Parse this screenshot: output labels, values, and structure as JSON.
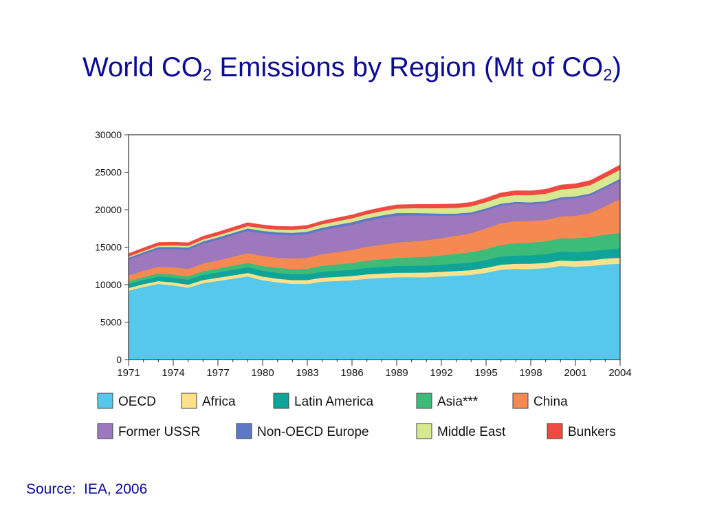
{
  "title": {
    "prefix": "World CO",
    "sub1": "2",
    "middle": " Emissions by Region (Mt of CO",
    "sub2": "2",
    "suffix": ")"
  },
  "source": "Source:  IEA, 2006",
  "chart_data": {
    "type": "area",
    "stacked": true,
    "x": [
      1971,
      1972,
      1973,
      1974,
      1975,
      1976,
      1977,
      1978,
      1979,
      1980,
      1981,
      1982,
      1983,
      1984,
      1985,
      1986,
      1987,
      1988,
      1989,
      1990,
      1991,
      1992,
      1993,
      1994,
      1995,
      1996,
      1997,
      1998,
      1999,
      2000,
      2001,
      2002,
      2003,
      2004
    ],
    "x_tick_labels": [
      "1971",
      "1974",
      "1977",
      "1980",
      "1983",
      "1986",
      "1989",
      "1992",
      "1995",
      "1998",
      "2001",
      "2004"
    ],
    "y_ticks": [
      0,
      5000,
      10000,
      15000,
      20000,
      25000,
      30000
    ],
    "y_tick_labels": [
      "0",
      "5000",
      "10000",
      "15000",
      "20000",
      "25000",
      "30000"
    ],
    "ylim": [
      0,
      30000
    ],
    "grid": false,
    "legend_position": "bottom",
    "series": [
      {
        "name": "OECD",
        "color": "#55c8ec",
        "values": [
          9200,
          9700,
          10100,
          9900,
          9600,
          10200,
          10500,
          10800,
          11100,
          10600,
          10300,
          10100,
          10100,
          10400,
          10500,
          10600,
          10800,
          10900,
          11000,
          11000,
          11000,
          11100,
          11200,
          11300,
          11600,
          12000,
          12100,
          12100,
          12200,
          12500,
          12400,
          12500,
          12700,
          12800
        ]
      },
      {
        "name": "Africa",
        "color": "#ffe18a",
        "values": [
          350,
          360,
          380,
          390,
          400,
          420,
          430,
          440,
          460,
          480,
          500,
          510,
          520,
          530,
          550,
          560,
          580,
          590,
          600,
          610,
          620,
          620,
          630,
          640,
          650,
          670,
          690,
          700,
          710,
          730,
          750,
          760,
          780,
          800
        ]
      },
      {
        "name": "Latin America",
        "color": "#0ea49a",
        "values": [
          550,
          580,
          620,
          650,
          670,
          690,
          720,
          750,
          780,
          790,
          790,
          780,
          780,
          800,
          810,
          830,
          860,
          880,
          900,
          920,
          940,
          960,
          990,
          1010,
          1040,
          1070,
          1100,
          1130,
          1150,
          1170,
          1190,
          1200,
          1210,
          1240
        ]
      },
      {
        "name": "Asia***",
        "color": "#3dbb78",
        "values": [
          350,
          380,
          400,
          420,
          440,
          470,
          500,
          540,
          580,
          620,
          660,
          700,
          740,
          790,
          840,
          900,
          960,
          1020,
          1070,
          1110,
          1170,
          1230,
          1300,
          1380,
          1470,
          1560,
          1640,
          1680,
          1720,
          1790,
          1840,
          1900,
          1980,
          2080
        ]
      },
      {
        "name": "China",
        "color": "#f48a52",
        "values": [
          800,
          850,
          900,
          950,
          1000,
          1050,
          1100,
          1200,
          1300,
          1350,
          1350,
          1400,
          1450,
          1550,
          1650,
          1750,
          1850,
          1950,
          2050,
          2100,
          2200,
          2300,
          2400,
          2550,
          2750,
          2900,
          2950,
          2900,
          2850,
          2900,
          3000,
          3200,
          3800,
          4500
        ]
      },
      {
        "name": "Former USSR",
        "color": "#9d78bc",
        "values": [
          2100,
          2200,
          2350,
          2450,
          2550,
          2650,
          2750,
          2850,
          2950,
          3000,
          3050,
          3100,
          3150,
          3200,
          3300,
          3350,
          3450,
          3550,
          3600,
          3500,
          3300,
          3000,
          2700,
          2500,
          2400,
          2350,
          2300,
          2200,
          2250,
          2300,
          2350,
          2350,
          2400,
          2450
        ]
      },
      {
        "name": "Non-OECD Europe",
        "color": "#5e78c8",
        "values": [
          250,
          260,
          270,
          280,
          290,
          300,
          310,
          320,
          330,
          340,
          340,
          330,
          330,
          340,
          340,
          350,
          350,
          350,
          340,
          320,
          300,
          280,
          270,
          270,
          270,
          270,
          270,
          270,
          260,
          260,
          260,
          260,
          270,
          270
        ]
      },
      {
        "name": "Middle East",
        "color": "#d7e890",
        "values": [
          150,
          170,
          190,
          210,
          230,
          250,
          280,
          300,
          320,
          340,
          360,
          390,
          420,
          450,
          480,
          510,
          540,
          570,
          600,
          640,
          680,
          720,
          760,
          800,
          840,
          880,
          920,
          960,
          1000,
          1040,
          1080,
          1120,
          1160,
          1200
        ]
      },
      {
        "name": "Bunkers",
        "color": "#ee4a42",
        "values": [
          400,
          410,
          420,
          430,
          420,
          430,
          440,
          450,
          460,
          450,
          440,
          430,
          430,
          440,
          450,
          460,
          470,
          480,
          490,
          500,
          510,
          520,
          530,
          540,
          550,
          560,
          570,
          580,
          590,
          600,
          610,
          620,
          630,
          650
        ]
      }
    ]
  }
}
